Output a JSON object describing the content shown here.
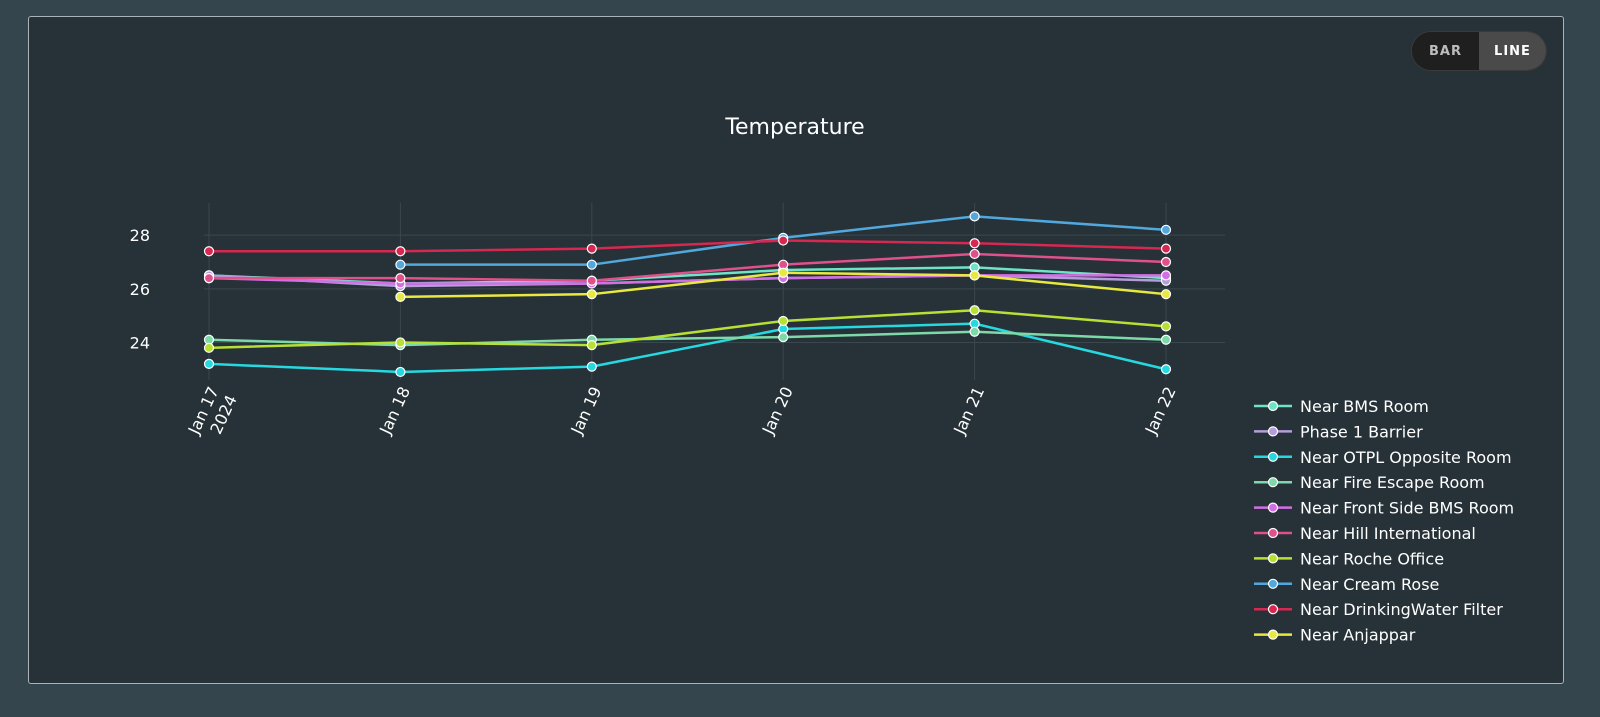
{
  "toggle": {
    "bar_label": "BAR",
    "line_label": "LINE",
    "active": "line"
  },
  "chart_data": {
    "type": "line",
    "title": "Temperature",
    "xlabel": "",
    "ylabel": "",
    "x": [
      "2024-01-17",
      "2024-01-18",
      "2024-01-19",
      "2024-01-20",
      "2024-01-21",
      "2024-01-22"
    ],
    "x_tick_labels": [
      [
        "Jan 17",
        "2024"
      ],
      [
        "Jan 18"
      ],
      [
        "Jan 19"
      ],
      [
        "Jan 20"
      ],
      [
        "Jan 21"
      ],
      [
        "Jan 22"
      ]
    ],
    "y_ticks": [
      24,
      26,
      28
    ],
    "ylim": [
      22.6,
      29.2
    ],
    "grid": true,
    "legend_position": "right",
    "series": [
      {
        "name": "Near BMS Room",
        "color": "#6fe3c8",
        "values": [
          26.5,
          26.2,
          26.3,
          26.7,
          26.8,
          26.4
        ]
      },
      {
        "name": "Phase 1 Barrier",
        "color": "#b39ddb",
        "values": [
          26.5,
          26.1,
          26.2,
          26.4,
          26.5,
          26.3
        ]
      },
      {
        "name": "Near OTPL Opposite Room",
        "color": "#26d9e0",
        "values": [
          23.2,
          22.9,
          23.1,
          24.5,
          24.7,
          23.0
        ]
      },
      {
        "name": "Near Fire Escape Room",
        "color": "#7ed9a8",
        "values": [
          24.1,
          23.9,
          24.1,
          24.2,
          24.4,
          24.1
        ]
      },
      {
        "name": "Near Front Side BMS Room",
        "color": "#d46ee6",
        "values": [
          26.4,
          26.2,
          26.2,
          26.4,
          26.5,
          26.5
        ]
      },
      {
        "name": "Near Hill International",
        "color": "#e0508a",
        "values": [
          26.4,
          26.4,
          26.3,
          26.9,
          27.3,
          27.0
        ]
      },
      {
        "name": "Near Roche Office",
        "color": "#b8e034",
        "values": [
          23.8,
          24.0,
          23.9,
          24.8,
          25.2,
          24.6
        ]
      },
      {
        "name": "Near Cream Rose",
        "color": "#52a8dd",
        "values": [
          null,
          26.9,
          26.9,
          27.9,
          28.7,
          28.2
        ]
      },
      {
        "name": "Near DrinkingWater Filter",
        "color": "#d62850",
        "values": [
          27.4,
          27.4,
          27.5,
          27.8,
          27.7,
          27.5
        ]
      },
      {
        "name": "Near Anjappar",
        "color": "#e8e840",
        "values": [
          null,
          25.7,
          25.8,
          26.6,
          26.5,
          25.8
        ]
      }
    ]
  }
}
